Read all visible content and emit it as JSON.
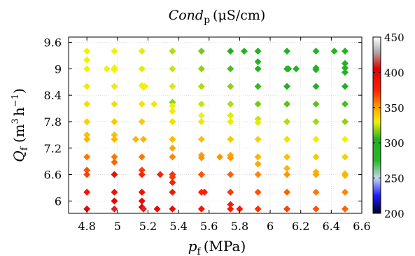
{
  "chart_data": {
    "type": "scatter",
    "title_main": "Cond",
    "title_sub": "p",
    "title_units": "(μS/cm)",
    "xlabel_main": "p",
    "xlabel_sub": "f",
    "xlabel_units": "(MPa)",
    "ylabel_main": "Q",
    "ylabel_sub": "f",
    "ylabel_units_pre": "(m",
    "ylabel_units_sup1": "3",
    "ylabel_units_mid": "h",
    "ylabel_units_sup2": "−1",
    "ylabel_units_post": ")",
    "xlim": [
      4.68,
      6.6
    ],
    "ylim": [
      5.72,
      9.72
    ],
    "xticks": [
      4.8,
      5,
      5.2,
      5.4,
      5.6,
      5.8,
      6,
      6.2,
      6.4,
      6.6
    ],
    "xtick_labels": [
      "4.8",
      "5",
      "5.2",
      "5.4",
      "5.6",
      "5.8",
      "6",
      "6.2",
      "6.4",
      "6.6"
    ],
    "yticks": [
      6,
      6.6,
      7.2,
      7.8,
      8.4,
      9,
      9.6
    ],
    "ytick_labels": [
      "6",
      "6.6",
      "7.2",
      "7.8",
      "8.4",
      "9",
      "9.6"
    ],
    "grid": true,
    "colorbar": {
      "range": [
        200,
        450
      ],
      "ticks": [
        200,
        250,
        300,
        350,
        400,
        450
      ],
      "tick_labels": [
        "200",
        "250",
        "300",
        "350",
        "400",
        "450"
      ],
      "stops": [
        {
          "value": 200,
          "color": "#000020"
        },
        {
          "value": 225,
          "color": "#1c1cff"
        },
        {
          "value": 250,
          "color": "#c6d6f0"
        },
        {
          "value": 275,
          "color": "#26b826"
        },
        {
          "value": 305,
          "color": "#22b022"
        },
        {
          "value": 330,
          "color": "#f2f200"
        },
        {
          "value": 350,
          "color": "#ffa000"
        },
        {
          "value": 375,
          "color": "#ff2000"
        },
        {
          "value": 405,
          "color": "#e00000"
        },
        {
          "value": 430,
          "color": "#b0b0b0"
        },
        {
          "value": 450,
          "color": "#ffffff"
        }
      ]
    },
    "points": [
      {
        "x": 4.8,
        "y": 9.4,
        "c": 330
      },
      {
        "x": 4.8,
        "y": 9.2,
        "c": 330
      },
      {
        "x": 4.8,
        "y": 9.0,
        "c": 330
      },
      {
        "x": 4.8,
        "y": 8.6,
        "c": 332
      },
      {
        "x": 4.8,
        "y": 8.2,
        "c": 335
      },
      {
        "x": 4.8,
        "y": 7.8,
        "c": 338
      },
      {
        "x": 4.8,
        "y": 7.5,
        "c": 342
      },
      {
        "x": 4.8,
        "y": 7.4,
        "c": 345
      },
      {
        "x": 4.8,
        "y": 7.0,
        "c": 358
      },
      {
        "x": 4.8,
        "y": 6.7,
        "c": 365
      },
      {
        "x": 4.8,
        "y": 6.6,
        "c": 368
      },
      {
        "x": 4.8,
        "y": 6.2,
        "c": 385
      },
      {
        "x": 4.8,
        "y": 5.82,
        "c": 395
      },
      {
        "x": 4.93,
        "y": 9.0,
        "c": 330
      },
      {
        "x": 4.98,
        "y": 9.4,
        "c": 330
      },
      {
        "x": 4.98,
        "y": 9.02,
        "c": 330
      },
      {
        "x": 4.98,
        "y": 8.98,
        "c": 330
      },
      {
        "x": 4.98,
        "y": 8.6,
        "c": 332
      },
      {
        "x": 4.98,
        "y": 8.2,
        "c": 335
      },
      {
        "x": 4.98,
        "y": 7.8,
        "c": 340
      },
      {
        "x": 4.98,
        "y": 7.5,
        "c": 342
      },
      {
        "x": 4.98,
        "y": 7.4,
        "c": 345
      },
      {
        "x": 4.98,
        "y": 7.0,
        "c": 358
      },
      {
        "x": 4.98,
        "y": 6.88,
        "c": 362
      },
      {
        "x": 4.98,
        "y": 6.6,
        "c": 392
      },
      {
        "x": 4.98,
        "y": 6.2,
        "c": 390
      },
      {
        "x": 4.98,
        "y": 6.0,
        "c": 400
      },
      {
        "x": 4.98,
        "y": 5.82,
        "c": 410
      },
      {
        "x": 5.12,
        "y": 7.4,
        "c": 345
      },
      {
        "x": 5.16,
        "y": 9.4,
        "c": 328
      },
      {
        "x": 5.16,
        "y": 9.0,
        "c": 328
      },
      {
        "x": 5.16,
        "y": 8.62,
        "c": 330
      },
      {
        "x": 5.17,
        "y": 8.58,
        "c": 330
      },
      {
        "x": 5.18,
        "y": 8.6,
        "c": 330
      },
      {
        "x": 5.16,
        "y": 8.2,
        "c": 334
      },
      {
        "x": 5.16,
        "y": 7.8,
        "c": 340
      },
      {
        "x": 5.17,
        "y": 7.4,
        "c": 345
      },
      {
        "x": 5.16,
        "y": 7.0,
        "c": 358
      },
      {
        "x": 5.16,
        "y": 6.7,
        "c": 370
      },
      {
        "x": 5.16,
        "y": 6.6,
        "c": 375
      },
      {
        "x": 5.16,
        "y": 6.2,
        "c": 390
      },
      {
        "x": 5.16,
        "y": 6.0,
        "c": 395
      },
      {
        "x": 5.16,
        "y": 5.86,
        "c": 405
      },
      {
        "x": 5.17,
        "y": 5.82,
        "c": 410
      },
      {
        "x": 5.24,
        "y": 8.2,
        "c": 333
      },
      {
        "x": 5.26,
        "y": 5.82,
        "c": 395
      },
      {
        "x": 5.28,
        "y": 6.6,
        "c": 375
      },
      {
        "x": 5.36,
        "y": 9.4,
        "c": 322
      },
      {
        "x": 5.36,
        "y": 9.0,
        "c": 325
      },
      {
        "x": 5.36,
        "y": 8.6,
        "c": 327
      },
      {
        "x": 5.36,
        "y": 8.24,
        "c": 318
      },
      {
        "x": 5.36,
        "y": 8.16,
        "c": 330
      },
      {
        "x": 5.36,
        "y": 8.04,
        "c": 332
      },
      {
        "x": 5.36,
        "y": 7.8,
        "c": 335
      },
      {
        "x": 5.36,
        "y": 7.4,
        "c": 343
      },
      {
        "x": 5.36,
        "y": 7.2,
        "c": 348
      },
      {
        "x": 5.36,
        "y": 7.0,
        "c": 355
      },
      {
        "x": 5.36,
        "y": 6.6,
        "c": 372
      },
      {
        "x": 5.36,
        "y": 6.54,
        "c": 370
      },
      {
        "x": 5.36,
        "y": 6.42,
        "c": 375
      },
      {
        "x": 5.36,
        "y": 6.2,
        "c": 385
      },
      {
        "x": 5.36,
        "y": 5.82,
        "c": 395
      },
      {
        "x": 5.55,
        "y": 9.4,
        "c": 315
      },
      {
        "x": 5.55,
        "y": 9.0,
        "c": 318
      },
      {
        "x": 5.55,
        "y": 8.6,
        "c": 322
      },
      {
        "x": 5.55,
        "y": 8.2,
        "c": 325
      },
      {
        "x": 5.55,
        "y": 7.94,
        "c": 330
      },
      {
        "x": 5.55,
        "y": 7.8,
        "c": 333
      },
      {
        "x": 5.55,
        "y": 7.4,
        "c": 342
      },
      {
        "x": 5.55,
        "y": 7.04,
        "c": 350
      },
      {
        "x": 5.55,
        "y": 6.98,
        "c": 352
      },
      {
        "x": 5.55,
        "y": 6.6,
        "c": 365
      },
      {
        "x": 5.55,
        "y": 6.2,
        "c": 375
      },
      {
        "x": 5.57,
        "y": 6.2,
        "c": 378
      },
      {
        "x": 5.55,
        "y": 5.82,
        "c": 385
      },
      {
        "x": 5.67,
        "y": 7.0,
        "c": 352
      },
      {
        "x": 5.74,
        "y": 9.4,
        "c": 305
      },
      {
        "x": 5.74,
        "y": 9.0,
        "c": 310
      },
      {
        "x": 5.74,
        "y": 8.6,
        "c": 318
      },
      {
        "x": 5.74,
        "y": 8.2,
        "c": 322
      },
      {
        "x": 5.74,
        "y": 7.94,
        "c": 328
      },
      {
        "x": 5.74,
        "y": 7.8,
        "c": 332
      },
      {
        "x": 5.74,
        "y": 7.4,
        "c": 340
      },
      {
        "x": 5.74,
        "y": 7.04,
        "c": 348
      },
      {
        "x": 5.74,
        "y": 6.98,
        "c": 352
      },
      {
        "x": 5.74,
        "y": 6.6,
        "c": 362
      },
      {
        "x": 5.74,
        "y": 6.2,
        "c": 370
      },
      {
        "x": 5.74,
        "y": 5.92,
        "c": 378
      },
      {
        "x": 5.74,
        "y": 5.82,
        "c": 382
      },
      {
        "x": 5.8,
        "y": 5.82,
        "c": 380
      },
      {
        "x": 5.83,
        "y": 9.4,
        "c": 295
      },
      {
        "x": 5.92,
        "y": 9.4,
        "c": 298
      },
      {
        "x": 5.92,
        "y": 9.16,
        "c": 300
      },
      {
        "x": 5.92,
        "y": 9.0,
        "c": 302
      },
      {
        "x": 5.92,
        "y": 8.6,
        "c": 308
      },
      {
        "x": 5.92,
        "y": 8.2,
        "c": 315
      },
      {
        "x": 5.92,
        "y": 7.86,
        "c": 325
      },
      {
        "x": 5.92,
        "y": 7.78,
        "c": 328
      },
      {
        "x": 5.92,
        "y": 7.4,
        "c": 338
      },
      {
        "x": 5.92,
        "y": 7.0,
        "c": 345
      },
      {
        "x": 5.92,
        "y": 6.84,
        "c": 348
      },
      {
        "x": 5.92,
        "y": 6.6,
        "c": 355
      },
      {
        "x": 5.92,
        "y": 6.2,
        "c": 365
      },
      {
        "x": 5.92,
        "y": 5.82,
        "c": 372
      },
      {
        "x": 6.11,
        "y": 9.4,
        "c": 298
      },
      {
        "x": 6.11,
        "y": 9.0,
        "c": 295
      },
      {
        "x": 6.12,
        "y": 9.0,
        "c": 298
      },
      {
        "x": 6.11,
        "y": 8.6,
        "c": 305
      },
      {
        "x": 6.11,
        "y": 8.2,
        "c": 312
      },
      {
        "x": 6.11,
        "y": 7.8,
        "c": 322
      },
      {
        "x": 6.11,
        "y": 7.4,
        "c": 335
      },
      {
        "x": 6.11,
        "y": 7.0,
        "c": 342
      },
      {
        "x": 6.11,
        "y": 6.74,
        "c": 345
      },
      {
        "x": 6.11,
        "y": 6.6,
        "c": 352
      },
      {
        "x": 6.11,
        "y": 6.2,
        "c": 362
      },
      {
        "x": 6.11,
        "y": 5.82,
        "c": 368
      },
      {
        "x": 6.17,
        "y": 9.0,
        "c": 296
      },
      {
        "x": 6.3,
        "y": 9.4,
        "c": 298
      },
      {
        "x": 6.3,
        "y": 9.02,
        "c": 296
      },
      {
        "x": 6.3,
        "y": 8.98,
        "c": 298
      },
      {
        "x": 6.3,
        "y": 8.6,
        "c": 305
      },
      {
        "x": 6.3,
        "y": 8.2,
        "c": 312
      },
      {
        "x": 6.3,
        "y": 7.8,
        "c": 320
      },
      {
        "x": 6.3,
        "y": 7.4,
        "c": 332
      },
      {
        "x": 6.3,
        "y": 7.0,
        "c": 340
      },
      {
        "x": 6.3,
        "y": 6.66,
        "c": 345
      },
      {
        "x": 6.3,
        "y": 6.6,
        "c": 348
      },
      {
        "x": 6.3,
        "y": 6.2,
        "c": 358
      },
      {
        "x": 6.3,
        "y": 5.82,
        "c": 365
      },
      {
        "x": 6.42,
        "y": 9.4,
        "c": 298
      },
      {
        "x": 6.49,
        "y": 9.4,
        "c": 298
      },
      {
        "x": 6.49,
        "y": 9.12,
        "c": 296
      },
      {
        "x": 6.49,
        "y": 9.02,
        "c": 296
      },
      {
        "x": 6.49,
        "y": 8.92,
        "c": 298
      },
      {
        "x": 6.49,
        "y": 8.6,
        "c": 302
      },
      {
        "x": 6.49,
        "y": 8.2,
        "c": 310
      },
      {
        "x": 6.49,
        "y": 7.8,
        "c": 318
      },
      {
        "x": 6.49,
        "y": 7.4,
        "c": 330
      },
      {
        "x": 6.49,
        "y": 7.0,
        "c": 338
      },
      {
        "x": 6.49,
        "y": 6.62,
        "c": 342
      },
      {
        "x": 6.49,
        "y": 6.58,
        "c": 345
      },
      {
        "x": 6.49,
        "y": 6.2,
        "c": 355
      },
      {
        "x": 6.49,
        "y": 5.82,
        "c": 362
      }
    ]
  }
}
